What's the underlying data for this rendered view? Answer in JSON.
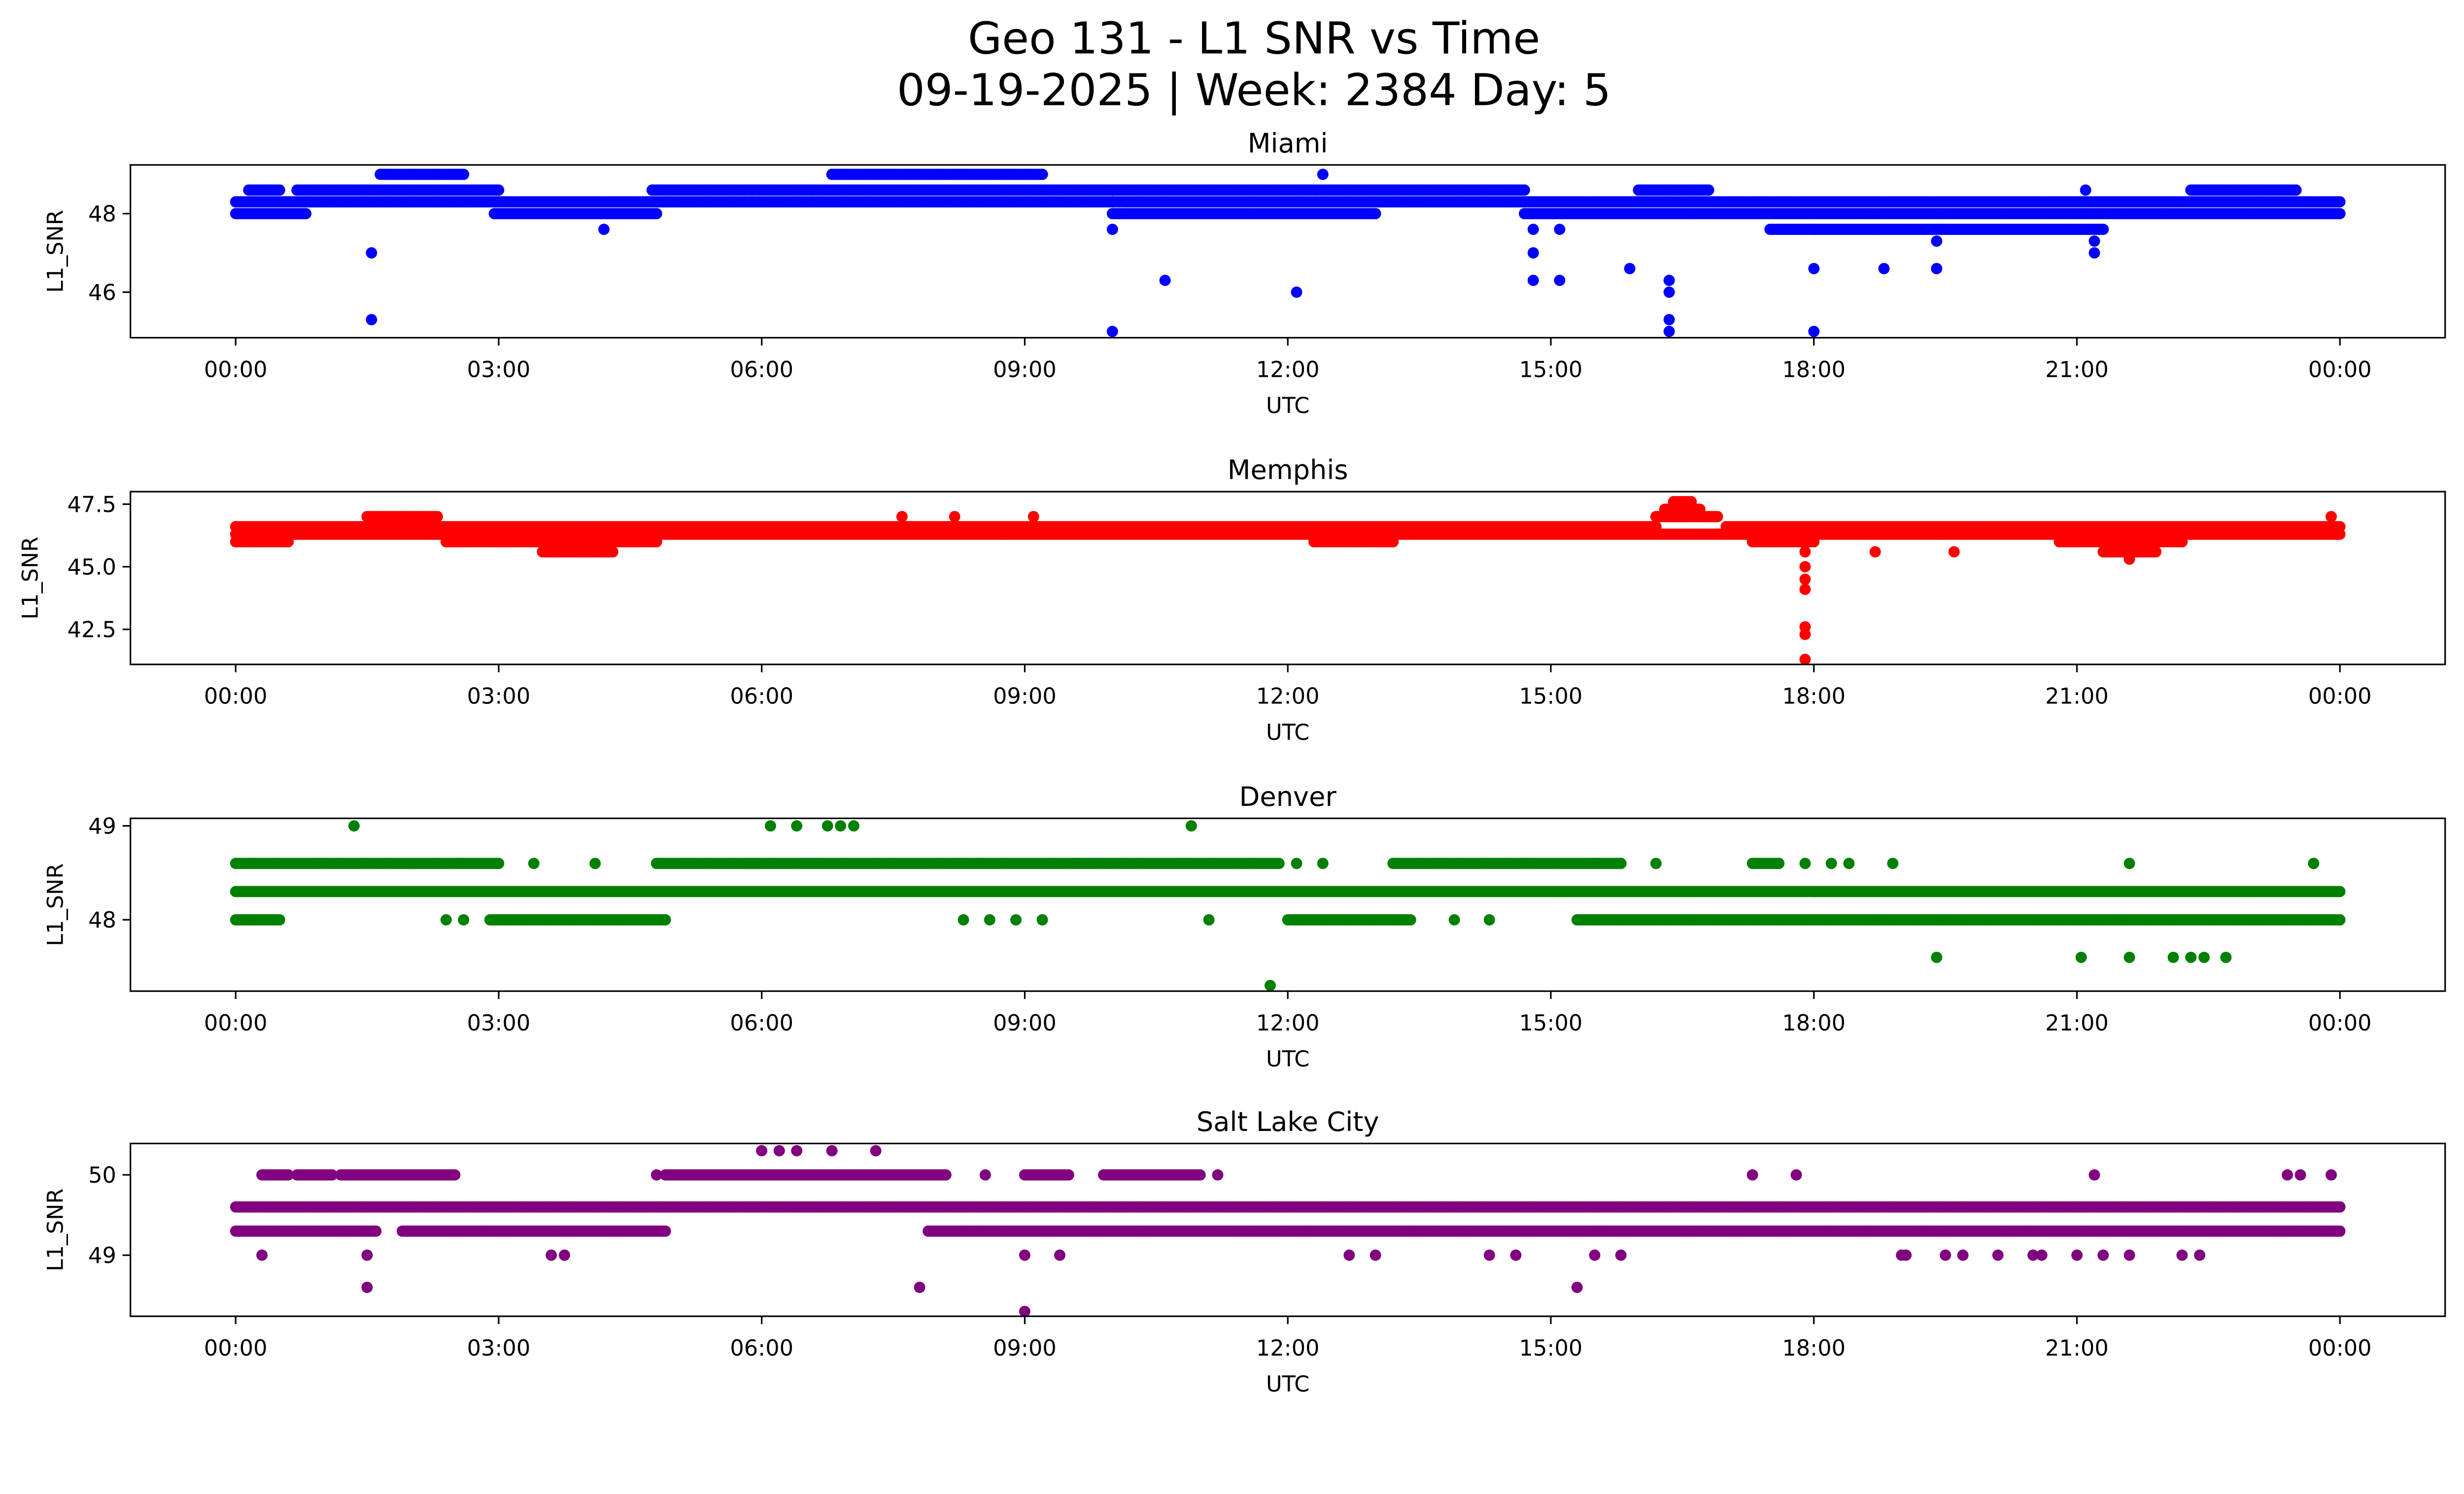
{
  "title_line1": "Geo 131 - L1 SNR vs Time",
  "title_line2": "09-19-2025 | Week: 2384 Day: 5",
  "chart_data": [
    {
      "type": "scatter",
      "title": "Miami",
      "color": "#0000ff",
      "xlabel": "UTC",
      "ylabel": "L1_SNR",
      "xlim_hours": [
        -1.2,
        25.2
      ],
      "ylim": [
        44.84,
        49.24
      ],
      "xticks": [
        "00:00",
        "03:00",
        "06:00",
        "09:00",
        "12:00",
        "15:00",
        "18:00",
        "21:00",
        "00:00"
      ],
      "yticks": [
        {
          "v": 46,
          "label": "46"
        },
        {
          "v": 48,
          "label": "48"
        }
      ],
      "bands": [
        [
          0,
          0.8,
          48.0
        ],
        [
          0,
          0.8,
          48.3
        ],
        [
          0.15,
          0.5,
          48.6
        ],
        [
          0.8,
          3.0,
          48.3
        ],
        [
          0.7,
          3.0,
          48.6
        ],
        [
          1.65,
          2.6,
          49.0
        ],
        [
          3.0,
          4.9,
          48.3
        ],
        [
          2.95,
          4.8,
          48.0
        ],
        [
          4.9,
          10.0,
          48.3
        ],
        [
          4.75,
          10.0,
          48.6
        ],
        [
          6.8,
          9.2,
          49.0
        ],
        [
          10.0,
          14.7,
          48.3
        ],
        [
          10.0,
          14.7,
          48.6
        ],
        [
          10.0,
          13.0,
          48.0
        ],
        [
          14.7,
          24,
          48.0
        ],
        [
          14.7,
          24,
          48.3
        ],
        [
          16.0,
          16.8,
          48.6
        ],
        [
          17.5,
          21.3,
          47.6
        ],
        [
          22.3,
          23.5,
          48.6
        ]
      ],
      "points": [
        [
          1.55,
          47.0
        ],
        [
          1.55,
          45.3
        ],
        [
          4.2,
          47.6
        ],
        [
          10.0,
          47.6
        ],
        [
          10.0,
          45.0
        ],
        [
          10.6,
          46.3
        ],
        [
          12.1,
          46.0
        ],
        [
          12.4,
          49.0
        ],
        [
          14.8,
          47.6
        ],
        [
          14.8,
          47.0
        ],
        [
          14.8,
          46.3
        ],
        [
          15.1,
          47.6
        ],
        [
          15.1,
          46.3
        ],
        [
          15.9,
          46.6
        ],
        [
          16.35,
          46.3
        ],
        [
          16.35,
          46.0
        ],
        [
          16.35,
          45.3
        ],
        [
          16.35,
          45.0
        ],
        [
          18.0,
          46.6
        ],
        [
          18.0,
          45.0
        ],
        [
          18.8,
          46.6
        ],
        [
          19.4,
          46.6
        ],
        [
          19.4,
          47.3
        ],
        [
          21.2,
          47.0
        ],
        [
          21.2,
          47.3
        ],
        [
          21.1,
          48.6
        ]
      ]
    },
    {
      "type": "scatter",
      "title": "Memphis",
      "color": "#ff0000",
      "xlabel": "UTC",
      "ylabel": "L1_SNR",
      "xlim_hours": [
        -1.2,
        25.2
      ],
      "ylim": [
        41.1,
        48.0
      ],
      "xticks": [
        "00:00",
        "03:00",
        "06:00",
        "09:00",
        "12:00",
        "15:00",
        "18:00",
        "21:00",
        "00:00"
      ],
      "yticks": [
        {
          "v": 42.5,
          "label": "42.5"
        },
        {
          "v": 45.0,
          "label": "45.0"
        },
        {
          "v": 47.5,
          "label": "47.5"
        }
      ],
      "bands": [
        [
          0,
          24,
          46.3
        ],
        [
          0,
          16.2,
          46.6
        ],
        [
          17.0,
          24,
          46.6
        ],
        [
          0,
          0.6,
          46.0
        ],
        [
          2.4,
          4.8,
          46.0
        ],
        [
          12.3,
          13.2,
          46.0
        ],
        [
          17.3,
          18.0,
          46.0
        ],
        [
          20.8,
          22.2,
          46.0
        ],
        [
          16.2,
          16.9,
          47.0
        ],
        [
          16.3,
          16.7,
          47.3
        ],
        [
          16.4,
          16.6,
          47.6
        ],
        [
          1.5,
          2.3,
          47.0
        ],
        [
          3.5,
          4.3,
          45.6
        ],
        [
          21.3,
          21.9,
          45.6
        ]
      ],
      "points": [
        [
          7.6,
          47.0
        ],
        [
          8.2,
          47.0
        ],
        [
          9.1,
          47.0
        ],
        [
          17.9,
          45.6
        ],
        [
          17.9,
          45.0
        ],
        [
          17.9,
          44.5
        ],
        [
          17.9,
          44.1
        ],
        [
          17.9,
          42.6
        ],
        [
          17.9,
          42.3
        ],
        [
          17.9,
          41.3
        ],
        [
          18.7,
          45.6
        ],
        [
          19.6,
          45.6
        ],
        [
          21.6,
          45.3
        ],
        [
          23.9,
          47.0
        ]
      ]
    },
    {
      "type": "scatter",
      "title": "Denver",
      "color": "#008000",
      "xlabel": "UTC",
      "ylabel": "L1_SNR",
      "xlim_hours": [
        -1.2,
        25.2
      ],
      "ylim": [
        47.24,
        49.08
      ],
      "xticks": [
        "00:00",
        "03:00",
        "06:00",
        "09:00",
        "12:00",
        "15:00",
        "18:00",
        "21:00",
        "00:00"
      ],
      "yticks": [
        {
          "v": 48,
          "label": "48"
        },
        {
          "v": 49,
          "label": "49"
        }
      ],
      "bands": [
        [
          0,
          24,
          48.3
        ],
        [
          0,
          3.0,
          48.6
        ],
        [
          4.8,
          11.9,
          48.6
        ],
        [
          13.2,
          15.8,
          48.6
        ],
        [
          0,
          0.5,
          48.0
        ],
        [
          2.9,
          4.9,
          48.0
        ],
        [
          12.0,
          13.4,
          48.0
        ],
        [
          15.3,
          24,
          48.0
        ],
        [
          17.3,
          17.6,
          48.6
        ]
      ],
      "points": [
        [
          3.4,
          48.6
        ],
        [
          4.1,
          48.6
        ],
        [
          12.1,
          48.6
        ],
        [
          12.4,
          48.6
        ],
        [
          16.2,
          48.6
        ],
        [
          17.9,
          48.6
        ],
        [
          18.2,
          48.6
        ],
        [
          18.4,
          48.6
        ],
        [
          18.9,
          48.6
        ],
        [
          21.6,
          48.6
        ],
        [
          23.7,
          48.6
        ],
        [
          2.4,
          48.0
        ],
        [
          2.6,
          48.0
        ],
        [
          8.3,
          48.0
        ],
        [
          8.6,
          48.0
        ],
        [
          8.9,
          48.0
        ],
        [
          9.2,
          48.0
        ],
        [
          11.1,
          48.0
        ],
        [
          13.9,
          48.0
        ],
        [
          14.3,
          48.0
        ],
        [
          1.35,
          49.0
        ],
        [
          6.1,
          49.0
        ],
        [
          6.4,
          49.0
        ],
        [
          6.75,
          49.0
        ],
        [
          6.9,
          49.0
        ],
        [
          7.05,
          49.0
        ],
        [
          10.9,
          49.0
        ],
        [
          11.8,
          47.3
        ],
        [
          19.4,
          47.6
        ],
        [
          21.05,
          47.6
        ],
        [
          21.6,
          47.6
        ],
        [
          22.1,
          47.6
        ],
        [
          22.3,
          47.6
        ],
        [
          22.45,
          47.6
        ],
        [
          22.7,
          47.6
        ]
      ]
    },
    {
      "type": "scatter",
      "title": "Salt Lake City",
      "color": "#800080",
      "xlabel": "UTC",
      "ylabel": "L1_SNR",
      "xlim_hours": [
        -1.2,
        25.2
      ],
      "ylim": [
        48.24,
        50.39
      ],
      "xticks": [
        "00:00",
        "03:00",
        "06:00",
        "09:00",
        "12:00",
        "15:00",
        "18:00",
        "21:00",
        "00:00"
      ],
      "yticks": [
        {
          "v": 49,
          "label": "49"
        },
        {
          "v": 50,
          "label": "50"
        }
      ],
      "bands": [
        [
          0,
          24,
          49.6
        ],
        [
          0,
          1.6,
          49.3
        ],
        [
          1.9,
          4.9,
          49.3
        ],
        [
          7.9,
          24,
          49.3
        ],
        [
          0.3,
          0.6,
          50.0
        ],
        [
          0.7,
          1.1,
          50.0
        ],
        [
          1.2,
          2.5,
          50.0
        ],
        [
          4.9,
          8.1,
          50.0
        ],
        [
          9.0,
          9.5,
          50.0
        ],
        [
          9.9,
          11.0,
          50.0
        ]
      ],
      "points": [
        [
          4.8,
          50.0
        ],
        [
          8.55,
          50.0
        ],
        [
          11.2,
          50.0
        ],
        [
          17.3,
          50.0
        ],
        [
          17.8,
          50.0
        ],
        [
          21.2,
          50.0
        ],
        [
          23.4,
          50.0
        ],
        [
          23.55,
          50.0
        ],
        [
          23.9,
          50.0
        ],
        [
          6.0,
          50.3
        ],
        [
          6.2,
          50.3
        ],
        [
          6.4,
          50.3
        ],
        [
          6.8,
          50.3
        ],
        [
          7.3,
          50.3
        ],
        [
          0.3,
          49.0
        ],
        [
          1.5,
          49.0
        ],
        [
          3.6,
          49.0
        ],
        [
          3.75,
          49.0
        ],
        [
          9.0,
          49.0
        ],
        [
          9.4,
          49.0
        ],
        [
          12.7,
          49.0
        ],
        [
          13.0,
          49.0
        ],
        [
          14.3,
          49.0
        ],
        [
          14.6,
          49.0
        ],
        [
          15.5,
          49.0
        ],
        [
          15.8,
          49.0
        ],
        [
          19.0,
          49.0
        ],
        [
          19.05,
          49.0
        ],
        [
          19.5,
          49.0
        ],
        [
          19.7,
          49.0
        ],
        [
          20.1,
          49.0
        ],
        [
          20.5,
          49.0
        ],
        [
          20.6,
          49.0
        ],
        [
          21.0,
          49.0
        ],
        [
          21.3,
          49.0
        ],
        [
          21.6,
          49.0
        ],
        [
          22.2,
          49.0
        ],
        [
          22.4,
          49.0
        ],
        [
          1.5,
          48.6
        ],
        [
          7.8,
          48.6
        ],
        [
          15.3,
          48.6
        ],
        [
          9.0,
          48.3
        ]
      ]
    }
  ]
}
